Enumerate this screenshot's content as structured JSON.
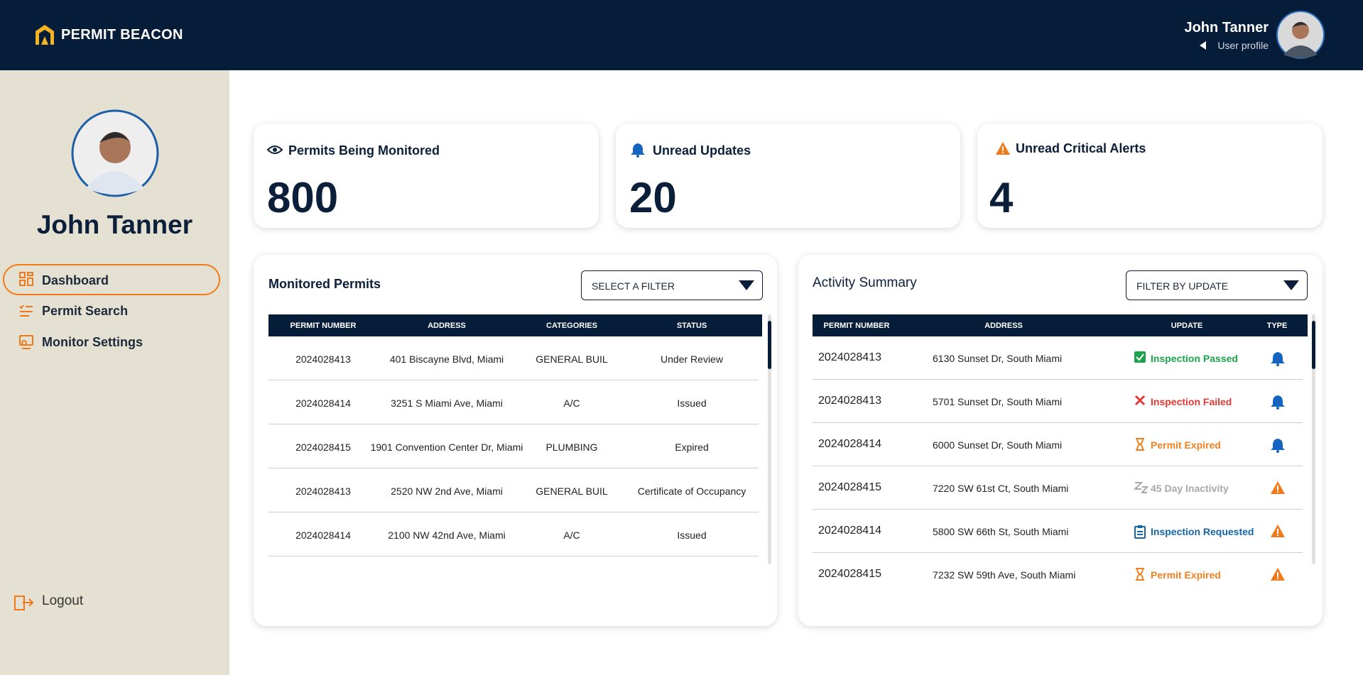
{
  "header": {
    "brand": "PERMIT BEACON",
    "user_name": "John Tanner",
    "user_link": "User profile"
  },
  "sidebar": {
    "name": "John Tanner",
    "nav": [
      "Dashboard",
      "Permit Search",
      "Monitor Settings"
    ],
    "logout": "Logout"
  },
  "stats": [
    {
      "label": "Permits Being Monitored",
      "value": 800
    },
    {
      "label": "Unread Updates",
      "value": 20
    },
    {
      "label": "Unread Critical Alerts",
      "value": 4
    }
  ],
  "monitored": {
    "title": "Monitored Permits",
    "filter": "SELECT A FILTER",
    "columns": [
      "PERMIT NUMBER",
      "ADDRESS",
      "CATEGORIES",
      "STATUS"
    ],
    "rows": [
      [
        "2024028413",
        "401 Biscayne Blvd, Miami",
        "GENERAL BUIL",
        "Under Review"
      ],
      [
        "2024028414",
        "3251 S Miami Ave, Miami",
        "A/C",
        "Issued"
      ],
      [
        "2024028415",
        "1901 Convention Center Dr, Miami",
        "PLUMBING",
        "Expired"
      ],
      [
        "2024028413",
        "2520 NW 2nd Ave, Miami",
        "GENERAL BUIL",
        "Certificate of Occupancy"
      ],
      [
        "2024028414",
        "2100 NW 42nd Ave, Miami",
        "A/C",
        "Issued"
      ]
    ]
  },
  "activity": {
    "title": "Activity Summary",
    "filter": "FILTER BY UPDATE",
    "columns": [
      "PERMIT NUMBER",
      "ADDRESS",
      "UPDATE",
      "TYPE"
    ],
    "rows": [
      {
        "permit": "2024028413",
        "address": "6130 Sunset Dr, South Miami",
        "update": "Inspection Passed",
        "color": "#1aa34a"
      },
      {
        "permit": "2024028413",
        "address": "5701 Sunset Dr, South Miami",
        "update": "Inspection Failed",
        "color": "#e53935"
      },
      {
        "permit": "2024028414",
        "address": "6000 Sunset Dr, South Miami",
        "update": "Permit Expired",
        "color": "#f08020"
      },
      {
        "permit": "2024028415",
        "address": "7220 SW 61st Ct, South Miami",
        "update": "45 Day Inactivity",
        "color": "#a8a8a8"
      },
      {
        "permit": "2024028414",
        "address": "5800 SW 66th St, South Miami",
        "update": "Inspection Requested",
        "color": "#1565a8"
      },
      {
        "permit": "2024028415",
        "address": "7232 SW 59th Ave, South Miami",
        "update": "Permit Expired",
        "color": "#f08020"
      }
    ]
  }
}
